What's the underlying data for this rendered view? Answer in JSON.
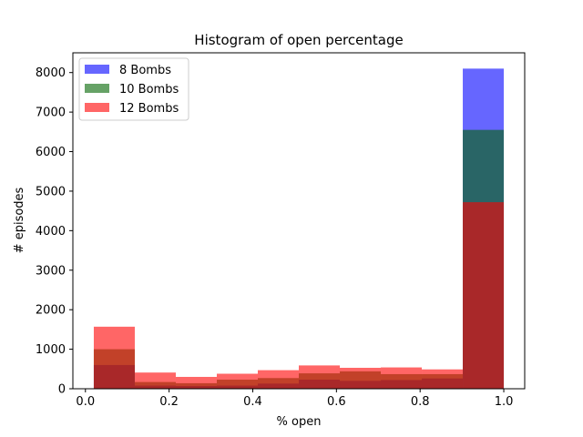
{
  "chart_data": {
    "type": "bar",
    "title": "Histogram of open percentage",
    "xlabel": "% open",
    "ylabel": "# episodes",
    "xlim": [
      -0.03,
      1.05
    ],
    "ylim": [
      0,
      8500
    ],
    "xticks": [
      0.0,
      0.2,
      0.4,
      0.6,
      0.8,
      1.0
    ],
    "xtick_labels": [
      "0.0",
      "0.2",
      "0.4",
      "0.6",
      "0.8",
      "1.0"
    ],
    "yticks": [
      0,
      1000,
      2000,
      3000,
      4000,
      5000,
      6000,
      7000,
      8000
    ],
    "ytick_labels": [
      "0",
      "1000",
      "2000",
      "3000",
      "4000",
      "5000",
      "6000",
      "7000",
      "8000"
    ],
    "bin_edges": [
      0.02,
      0.118,
      0.216,
      0.314,
      0.412,
      0.51,
      0.608,
      0.706,
      0.804,
      0.902,
      1.0
    ],
    "grid": false,
    "legend_position": "top-left",
    "series": [
      {
        "name": "8 Bombs",
        "color": "#0000ff",
        "alpha": 0.6,
        "values": [
          600,
          80,
          70,
          80,
          130,
          230,
          200,
          220,
          260,
          8100
        ]
      },
      {
        "name": "10 Bombs",
        "color": "#006400",
        "alpha": 0.6,
        "values": [
          1000,
          170,
          140,
          230,
          270,
          390,
          440,
          370,
          370,
          6550
        ]
      },
      {
        "name": "12 Bombs",
        "color": "#ff0000",
        "alpha": 0.6,
        "values": [
          1570,
          410,
          300,
          380,
          470,
          590,
          530,
          540,
          490,
          4720
        ]
      }
    ]
  }
}
